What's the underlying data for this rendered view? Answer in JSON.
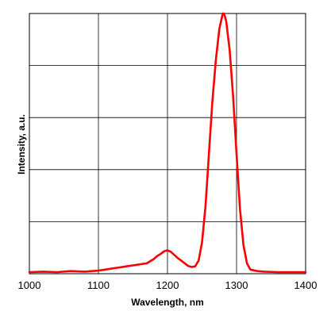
{
  "chart_data": {
    "type": "line",
    "xlabel": "Wavelength, nm",
    "ylabel": "Intensity, a.u.",
    "xlim": [
      1000,
      1400
    ],
    "ylim": [
      0,
      5
    ],
    "x_ticks": [
      1000,
      1100,
      1200,
      1300,
      1400
    ],
    "y_ticks": [],
    "y_gridlines": [
      0,
      1,
      2,
      3,
      4,
      5
    ],
    "grid": true,
    "legend": "none",
    "series": [
      {
        "color": "#ff0000",
        "x": [
          1000,
          1020,
          1040,
          1060,
          1080,
          1100,
          1110,
          1120,
          1130,
          1140,
          1150,
          1160,
          1170,
          1180,
          1185,
          1190,
          1195,
          1200,
          1205,
          1210,
          1215,
          1220,
          1225,
          1230,
          1235,
          1240,
          1245,
          1250,
          1255,
          1260,
          1265,
          1270,
          1275,
          1280,
          1282,
          1285,
          1290,
          1295,
          1300,
          1305,
          1310,
          1315,
          1320,
          1330,
          1340,
          1360,
          1380,
          1400
        ],
        "y": [
          0.03,
          0.04,
          0.03,
          0.05,
          0.04,
          0.06,
          0.08,
          0.1,
          0.12,
          0.14,
          0.16,
          0.18,
          0.2,
          0.28,
          0.34,
          0.38,
          0.43,
          0.45,
          0.42,
          0.36,
          0.3,
          0.25,
          0.2,
          0.15,
          0.13,
          0.14,
          0.25,
          0.6,
          1.3,
          2.3,
          3.3,
          4.1,
          4.7,
          5.0,
          5.0,
          4.85,
          4.3,
          3.4,
          2.3,
          1.25,
          0.55,
          0.2,
          0.08,
          0.05,
          0.04,
          0.03,
          0.03,
          0.03
        ]
      }
    ]
  }
}
